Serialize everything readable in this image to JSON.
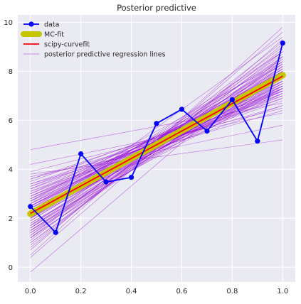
{
  "chart_data": {
    "type": "line",
    "title": "Posterior predictive",
    "xlabel": "",
    "ylabel": "",
    "xlim": [
      -0.05,
      1.05
    ],
    "ylim": [
      -0.6,
      10.3
    ],
    "x_ticks": [
      0.0,
      0.2,
      0.4,
      0.6,
      0.8,
      1.0
    ],
    "x_tick_labels": [
      "0.0",
      "0.2",
      "0.4",
      "0.6",
      "0.8",
      "1.0"
    ],
    "y_ticks": [
      0,
      2,
      4,
      6,
      8,
      10
    ],
    "y_tick_labels": [
      "0",
      "2",
      "4",
      "6",
      "8",
      "10"
    ],
    "grid": true,
    "legend_position": "top-left",
    "background": "#eaeaf2",
    "series": [
      {
        "name": "data",
        "kind": "line-markers",
        "color": "#0000ff",
        "x": [
          0.0,
          0.1,
          0.2,
          0.3,
          0.4,
          0.5,
          0.6,
          0.7,
          0.8,
          0.9,
          1.0
        ],
        "y": [
          2.48,
          1.42,
          4.63,
          3.48,
          3.67,
          5.87,
          6.45,
          5.56,
          6.84,
          5.15,
          9.15
        ]
      },
      {
        "name": "MC-fit",
        "kind": "thick-line",
        "color": "#c6c600",
        "x": [
          0.0,
          1.0
        ],
        "y": [
          2.18,
          7.84
        ]
      },
      {
        "name": "scipy-curvefit",
        "kind": "line",
        "color": "#ff0000",
        "x": [
          0.0,
          1.0
        ],
        "y": [
          2.2,
          7.8
        ]
      },
      {
        "name": "posterior predictive regression lines",
        "kind": "line-bundle",
        "color": "#9400d3",
        "lines": [
          [
            2.2,
            7.8
          ],
          [
            -0.2,
            8.6
          ],
          [
            4.8,
            6.7
          ],
          [
            0.4,
            9.3
          ],
          [
            3.6,
            7.0
          ],
          [
            1.2,
            8.2
          ],
          [
            2.9,
            7.3
          ],
          [
            1.7,
            8.4
          ],
          [
            2.5,
            7.6
          ],
          [
            3.1,
            7.1
          ],
          [
            1.5,
            8.0
          ],
          [
            2.0,
            7.9
          ],
          [
            2.6,
            7.4
          ],
          [
            1.9,
            8.1
          ],
          [
            3.4,
            6.9
          ],
          [
            1.0,
            8.6
          ],
          [
            2.3,
            7.7
          ],
          [
            2.8,
            7.5
          ],
          [
            1.6,
            8.3
          ],
          [
            3.0,
            7.2
          ],
          [
            2.1,
            7.6
          ],
          [
            2.4,
            8.0
          ],
          [
            1.3,
            8.5
          ],
          [
            3.3,
            6.8
          ],
          [
            2.7,
            7.9
          ],
          [
            1.8,
            7.7
          ],
          [
            2.2,
            8.2
          ],
          [
            3.6,
            6.6
          ],
          [
            0.9,
            8.8
          ],
          [
            2.5,
            7.3
          ],
          [
            1.4,
            8.7
          ],
          [
            3.2,
            7.4
          ],
          [
            2.0,
            8.3
          ],
          [
            2.9,
            7.0
          ],
          [
            1.6,
            7.9
          ],
          [
            2.3,
            7.5
          ],
          [
            2.6,
            8.1
          ],
          [
            1.1,
            8.9
          ],
          [
            3.5,
            7.2
          ],
          [
            2.1,
            7.4
          ],
          [
            1.7,
            8.6
          ],
          [
            2.8,
            7.8
          ],
          [
            0.7,
            9.6
          ],
          [
            3.9,
            6.5
          ],
          [
            1.5,
            7.6
          ],
          [
            2.4,
            7.2
          ],
          [
            3.0,
            7.7
          ],
          [
            1.2,
            9.2
          ],
          [
            2.2,
            7.1
          ],
          [
            2.7,
            8.4
          ],
          [
            0.5,
            9.8
          ],
          [
            4.2,
            6.3
          ],
          [
            1.9,
            8.0
          ],
          [
            2.5,
            7.9
          ],
          [
            3.3,
            7.3
          ],
          [
            1.0,
            8.4
          ],
          [
            2.0,
            7.5
          ],
          [
            2.8,
            7.1
          ],
          [
            1.6,
            8.8
          ],
          [
            3.7,
            5.8
          ],
          [
            1.3,
            9.0
          ],
          [
            2.4,
            8.3
          ],
          [
            3.1,
            6.6
          ],
          [
            1.8,
            7.4
          ],
          [
            2.6,
            7.7
          ],
          [
            0.8,
            9.1
          ],
          [
            3.8,
            5.2
          ],
          [
            2.3,
            8.5
          ],
          [
            1.4,
            7.8
          ],
          [
            2.9,
            7.6
          ],
          [
            2.1,
            8.8
          ],
          [
            3.4,
            6.4
          ],
          [
            1.7,
            7.3
          ],
          [
            2.5,
            8.0
          ],
          [
            1.2,
            8.1
          ],
          [
            2.7,
            7.2
          ],
          [
            3.2,
            6.9
          ],
          [
            2.0,
            9.4
          ],
          [
            1.5,
            8.2
          ],
          [
            2.2,
            7.3
          ]
        ]
      }
    ]
  }
}
